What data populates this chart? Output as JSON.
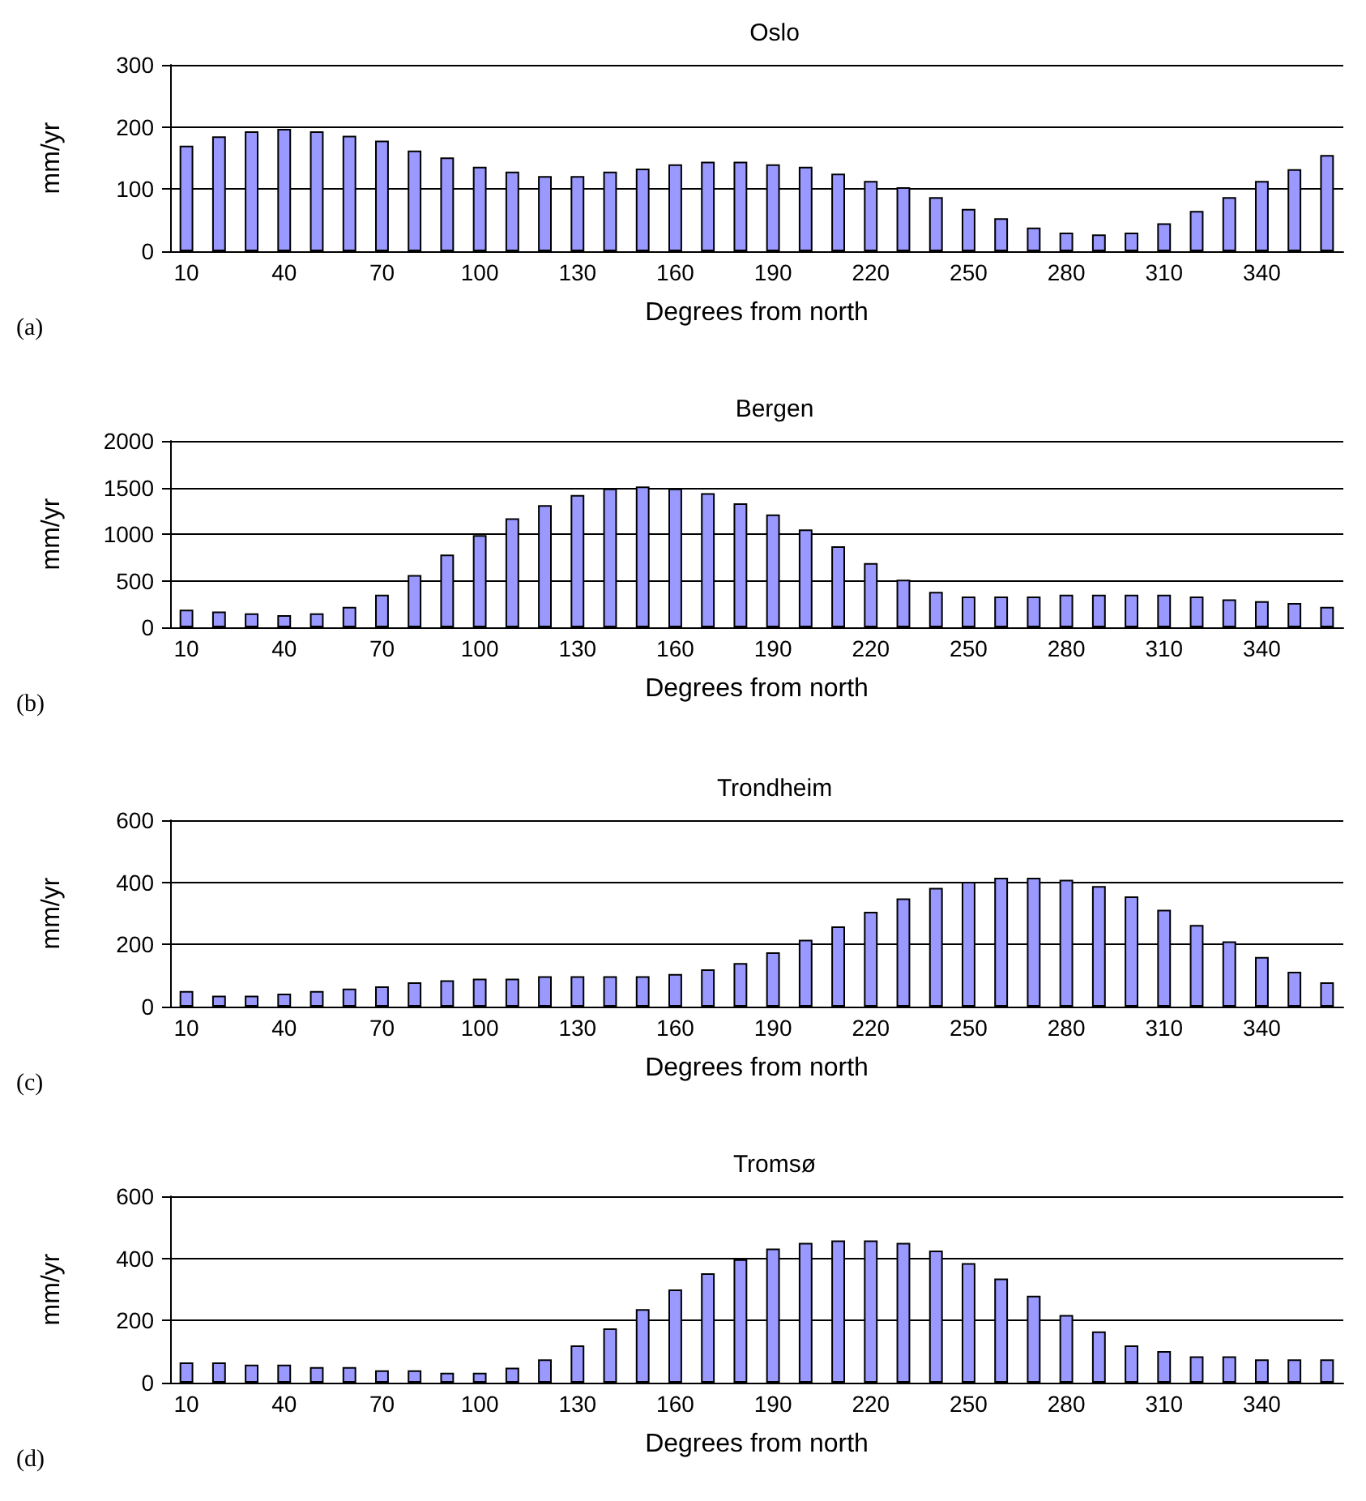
{
  "chart_data": [
    {
      "type": "bar",
      "title": "Oslo",
      "xlabel": "Degrees from north",
      "ylabel": "mm/yr",
      "annotations": [
        "(a)"
      ],
      "categories": [
        "10",
        null,
        null,
        "40",
        null,
        null,
        "70",
        null,
        null,
        "100",
        null,
        null,
        "130",
        null,
        null,
        "160",
        null,
        null,
        "190",
        null,
        null,
        "220",
        null,
        null,
        "250",
        null,
        null,
        "280",
        null,
        null,
        "310",
        null,
        null,
        "340",
        null,
        null
      ],
      "values": [
        170,
        185,
        193,
        197,
        193,
        186,
        178,
        162,
        151,
        136,
        128,
        121,
        121,
        128,
        133,
        140,
        144,
        144,
        140,
        136,
        125,
        113,
        103,
        87,
        68,
        53,
        38,
        30,
        27,
        30,
        45,
        65,
        87,
        113,
        132,
        155
      ],
      "color": "#9999ff",
      "ylim": [
        0,
        300
      ],
      "yticks": [
        0,
        100,
        200,
        300
      ],
      "grid": "y"
    },
    {
      "type": "bar",
      "title": "Bergen",
      "xlabel": "Degrees from north",
      "ylabel": "mm/yr",
      "annotations": [
        "(b)"
      ],
      "categories": [
        "10",
        null,
        null,
        "40",
        null,
        null,
        "70",
        null,
        null,
        "100",
        null,
        null,
        "130",
        null,
        null,
        "160",
        null,
        null,
        "190",
        null,
        null,
        "220",
        null,
        null,
        "250",
        null,
        null,
        "280",
        null,
        null,
        "310",
        null,
        null,
        "340",
        null,
        null
      ],
      "values": [
        190,
        170,
        150,
        130,
        150,
        220,
        350,
        560,
        780,
        990,
        1170,
        1310,
        1420,
        1490,
        1510,
        1490,
        1440,
        1330,
        1210,
        1050,
        870,
        690,
        510,
        380,
        330,
        330,
        330,
        350,
        350,
        350,
        350,
        330,
        300,
        280,
        260,
        220
      ],
      "color": "#9999ff",
      "ylim": [
        0,
        2000
      ],
      "yticks": [
        0,
        500,
        1000,
        1500,
        2000
      ],
      "grid": "y"
    },
    {
      "type": "bar",
      "title": "Trondheim",
      "xlabel": "Degrees from north",
      "ylabel": "mm/yr",
      "annotations": [
        "(c)"
      ],
      "categories": [
        "10",
        null,
        null,
        "40",
        null,
        null,
        "70",
        null,
        null,
        "100",
        null,
        null,
        "130",
        null,
        null,
        "160",
        null,
        null,
        "190",
        null,
        null,
        "220",
        null,
        null,
        "250",
        null,
        null,
        "280",
        null,
        null,
        "310",
        null,
        null,
        "340",
        null,
        null
      ],
      "values": [
        50,
        35,
        35,
        42,
        50,
        58,
        65,
        78,
        85,
        90,
        90,
        98,
        98,
        98,
        98,
        105,
        120,
        140,
        175,
        215,
        258,
        305,
        348,
        382,
        402,
        415,
        415,
        408,
        388,
        355,
        312,
        263,
        210,
        160,
        112,
        78
      ],
      "color": "#9999ff",
      "ylim": [
        0,
        600
      ],
      "yticks": [
        0,
        200,
        400,
        600
      ],
      "grid": "y"
    },
    {
      "type": "bar",
      "title": "Tromsø",
      "xlabel": "Degrees from north",
      "ylabel": "mm/yr",
      "annotations": [
        "(d)"
      ],
      "categories": [
        "10",
        null,
        null,
        "40",
        null,
        null,
        "70",
        null,
        null,
        "100",
        null,
        null,
        "130",
        null,
        null,
        "160",
        null,
        null,
        "190",
        null,
        null,
        "220",
        null,
        null,
        "250",
        null,
        null,
        "280",
        null,
        null,
        "310",
        null,
        null,
        "340",
        null,
        null
      ],
      "values": [
        65,
        65,
        58,
        58,
        50,
        50,
        40,
        40,
        32,
        32,
        48,
        75,
        120,
        175,
        237,
        300,
        352,
        397,
        432,
        450,
        458,
        458,
        450,
        425,
        385,
        335,
        280,
        218,
        165,
        120,
        102,
        85,
        85,
        75,
        75,
        75
      ],
      "color": "#9999ff",
      "ylim": [
        0,
        600
      ],
      "yticks": [
        0,
        200,
        400,
        600
      ],
      "grid": "y"
    }
  ]
}
